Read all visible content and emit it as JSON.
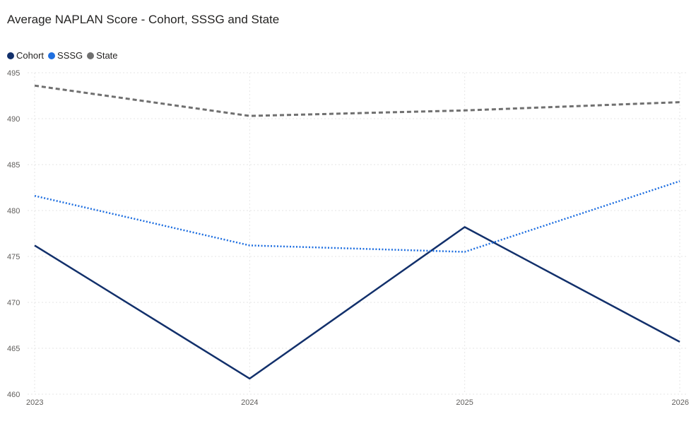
{
  "chart_data": {
    "type": "line",
    "title": "Average NAPLAN Score - Cohort, SSSG and State",
    "xlabel": "",
    "ylabel": "",
    "categories": [
      "2023",
      "2024",
      "2025",
      "2026"
    ],
    "ylim": [
      460,
      495
    ],
    "yticks": [
      "460",
      "465",
      "470",
      "475",
      "480",
      "485",
      "490",
      "495"
    ],
    "grid": true,
    "legend_position": "top-left",
    "series": [
      {
        "name": "Cohort",
        "values": [
          476.2,
          461.7,
          478.2,
          465.7
        ],
        "color": "#12306b",
        "style": "solid"
      },
      {
        "name": "SSSG",
        "values": [
          481.6,
          476.2,
          475.5,
          483.2
        ],
        "color": "#1f6fe0",
        "style": "dotted"
      },
      {
        "name": "State",
        "values": [
          493.6,
          490.3,
          490.9,
          491.8
        ],
        "color": "#707070",
        "style": "dashed"
      }
    ]
  }
}
